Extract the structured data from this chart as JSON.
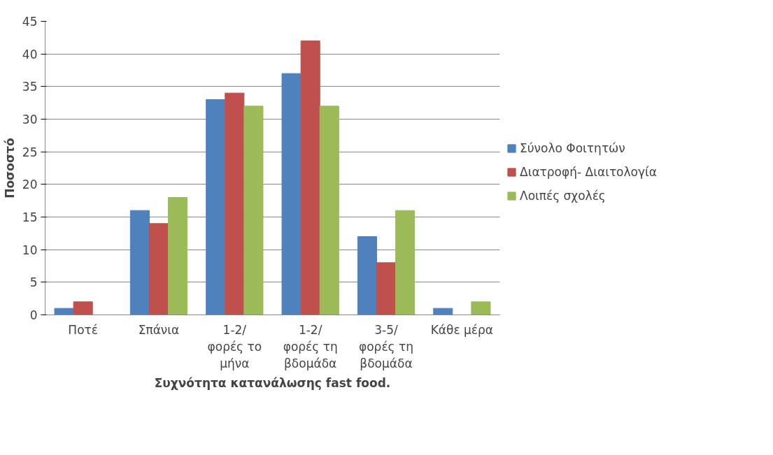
{
  "chart_data": {
    "type": "bar",
    "xlabel": "Συχνότητα κατανάλωσης fast food.",
    "ylabel": "Ποσοστό",
    "categories": [
      "Ποτέ",
      "Σπάνια",
      "1-2/ φορές το μήνα",
      "1-2/ φορές τη βδομάδα",
      "3-5/ φορές τη βδομάδα",
      "Κάθε μέρα"
    ],
    "series": [
      {
        "name": "Σύνολο Φοιτητών",
        "color": "#4f81bd",
        "values": [
          1,
          16,
          33,
          37,
          12,
          1
        ]
      },
      {
        "name": "Διατροφή- Διαιτολογία",
        "color": "#c0504d",
        "values": [
          2,
          14,
          34,
          42,
          8,
          0
        ]
      },
      {
        "name": "Λοιπές σχολές",
        "color": "#9bbb59",
        "values": [
          0,
          18,
          32,
          32,
          16,
          2
        ]
      }
    ],
    "ylim": [
      0,
      45
    ],
    "yticks": [
      0,
      5,
      10,
      15,
      20,
      25,
      30,
      35,
      40,
      45
    ],
    "grid": "y",
    "legend": "right"
  }
}
